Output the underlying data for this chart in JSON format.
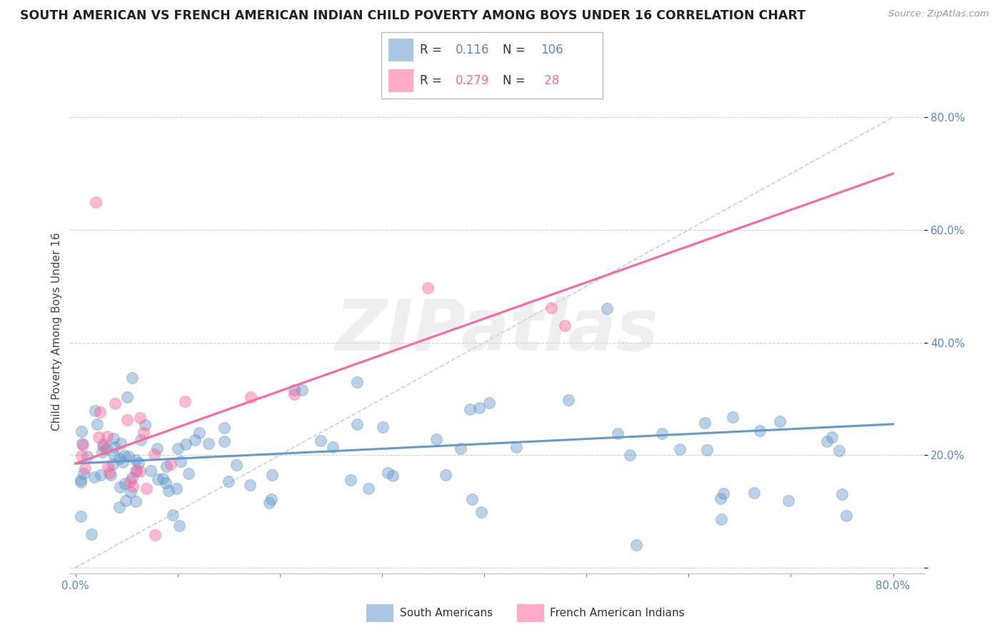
{
  "title": "SOUTH AMERICAN VS FRENCH AMERICAN INDIAN CHILD POVERTY AMONG BOYS UNDER 16 CORRELATION CHART",
  "source": "Source: ZipAtlas.com",
  "ylabel": "Child Poverty Among Boys Under 16",
  "xlim": [
    0.0,
    0.8
  ],
  "ylim": [
    0.0,
    0.8
  ],
  "blue_color": "#6699CC",
  "pink_color": "#FF6699",
  "blue_label": "South Americans",
  "pink_label": "French American Indians",
  "R_blue": 0.116,
  "N_blue": 106,
  "R_pink": 0.279,
  "N_pink": 28,
  "watermark": "ZIPatlas",
  "background_color": "#FFFFFF",
  "blue_trend": [
    0.0,
    0.185,
    0.8,
    0.255
  ],
  "pink_trend": [
    0.0,
    0.185,
    0.8,
    0.7
  ],
  "diag_line_style": "--",
  "diag_color": "#BBBBBB"
}
